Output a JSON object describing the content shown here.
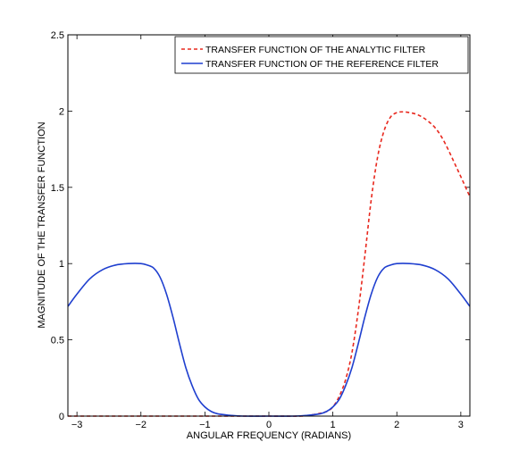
{
  "chart_data": {
    "type": "line",
    "xlabel": "ANGULAR FREQUENCY (RADIANS)",
    "ylabel": "MAGNITUDE OF THE TRANSFER FUNCTION",
    "xlim": [
      -3.14159,
      3.14159
    ],
    "ylim": [
      0,
      2.5
    ],
    "xticks": [
      -3,
      -2,
      -1,
      0,
      1,
      2,
      3
    ],
    "xtick_labels": [
      "−3",
      "−2",
      "−1",
      "0",
      "1",
      "2",
      "3"
    ],
    "yticks": [
      0,
      0.5,
      1,
      1.5,
      2,
      2.5
    ],
    "ytick_labels": [
      "0",
      "0.5",
      "1",
      "1.5",
      "2",
      "2.5"
    ],
    "grid": false,
    "legend_position": "top-right",
    "series": [
      {
        "name": "TRANSFER FUNCTION OF THE ANALYTIC FILTER",
        "color": "#e8281e",
        "style": "dashed",
        "x": [
          -3.14,
          -2.5,
          -2.0,
          -1.5,
          -1.0,
          -0.5,
          0.0,
          0.5,
          0.7,
          0.9,
          1.0,
          1.1,
          1.2,
          1.3,
          1.4,
          1.5,
          1.6,
          1.7,
          1.8,
          1.9,
          2.0,
          2.1,
          2.2,
          2.3,
          2.4,
          2.5,
          2.6,
          2.7,
          2.8,
          2.9,
          3.0,
          3.14
        ],
        "y": [
          0,
          0,
          0,
          0,
          0,
          0,
          0,
          0.0,
          0.01,
          0.03,
          0.06,
          0.13,
          0.24,
          0.42,
          0.7,
          1.05,
          1.42,
          1.7,
          1.87,
          1.96,
          1.99,
          1.995,
          1.99,
          1.98,
          1.96,
          1.93,
          1.89,
          1.83,
          1.75,
          1.66,
          1.57,
          1.44
        ]
      },
      {
        "name": "TRANSFER FUNCTION OF THE REFERENCE FILTER",
        "color": "#1f3fcf",
        "style": "solid",
        "x": [
          -3.14,
          -3.0,
          -2.8,
          -2.6,
          -2.4,
          -2.2,
          -2.0,
          -1.9,
          -1.8,
          -1.7,
          -1.6,
          -1.5,
          -1.4,
          -1.3,
          -1.2,
          -1.1,
          -1.0,
          -0.9,
          -0.8,
          -0.6,
          -0.4,
          0.0,
          0.4,
          0.6,
          0.8,
          0.9,
          1.0,
          1.1,
          1.2,
          1.3,
          1.4,
          1.5,
          1.6,
          1.7,
          1.8,
          1.9,
          2.0,
          2.2,
          2.4,
          2.6,
          2.8,
          3.0,
          3.14
        ],
        "y": [
          0.72,
          0.8,
          0.9,
          0.96,
          0.99,
          1.0,
          1.0,
          0.99,
          0.97,
          0.91,
          0.8,
          0.65,
          0.48,
          0.32,
          0.2,
          0.11,
          0.06,
          0.03,
          0.015,
          0.005,
          0.0,
          0.0,
          0.0,
          0.005,
          0.015,
          0.03,
          0.06,
          0.11,
          0.2,
          0.32,
          0.48,
          0.65,
          0.8,
          0.91,
          0.97,
          0.99,
          1.0,
          1.0,
          0.99,
          0.96,
          0.9,
          0.8,
          0.72
        ]
      }
    ]
  }
}
